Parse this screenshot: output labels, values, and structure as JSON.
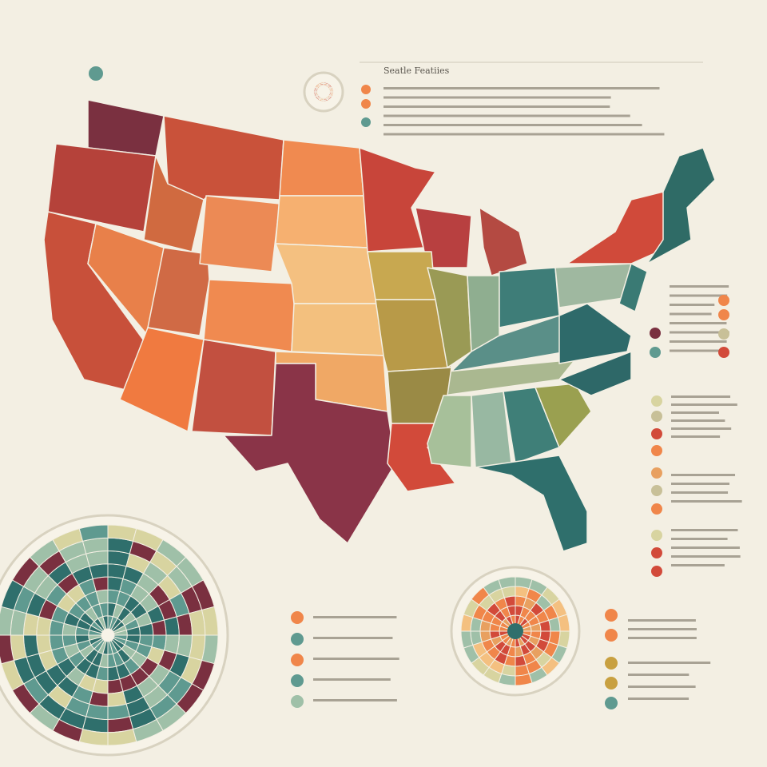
{
  "header": {
    "title": "Seatle Featiies"
  }
}
